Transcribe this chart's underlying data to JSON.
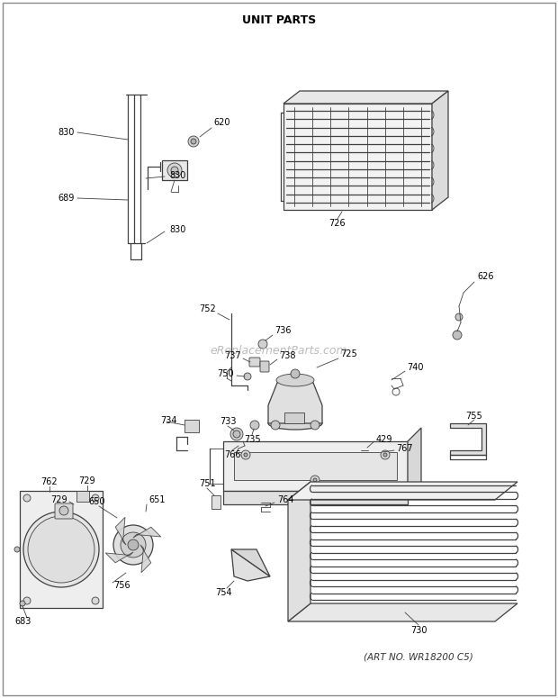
{
  "title": "UNIT PARTS",
  "subtitle": "(ART NO. WR18200 C5)",
  "watermark": "eReplacementParts.com",
  "background_color": "#ffffff",
  "line_color": "#404040",
  "title_fontsize": 9,
  "label_fontsize": 7,
  "watermark_color": "#bbbbbb",
  "figsize": [
    6.2,
    7.75
  ],
  "dpi": 100
}
